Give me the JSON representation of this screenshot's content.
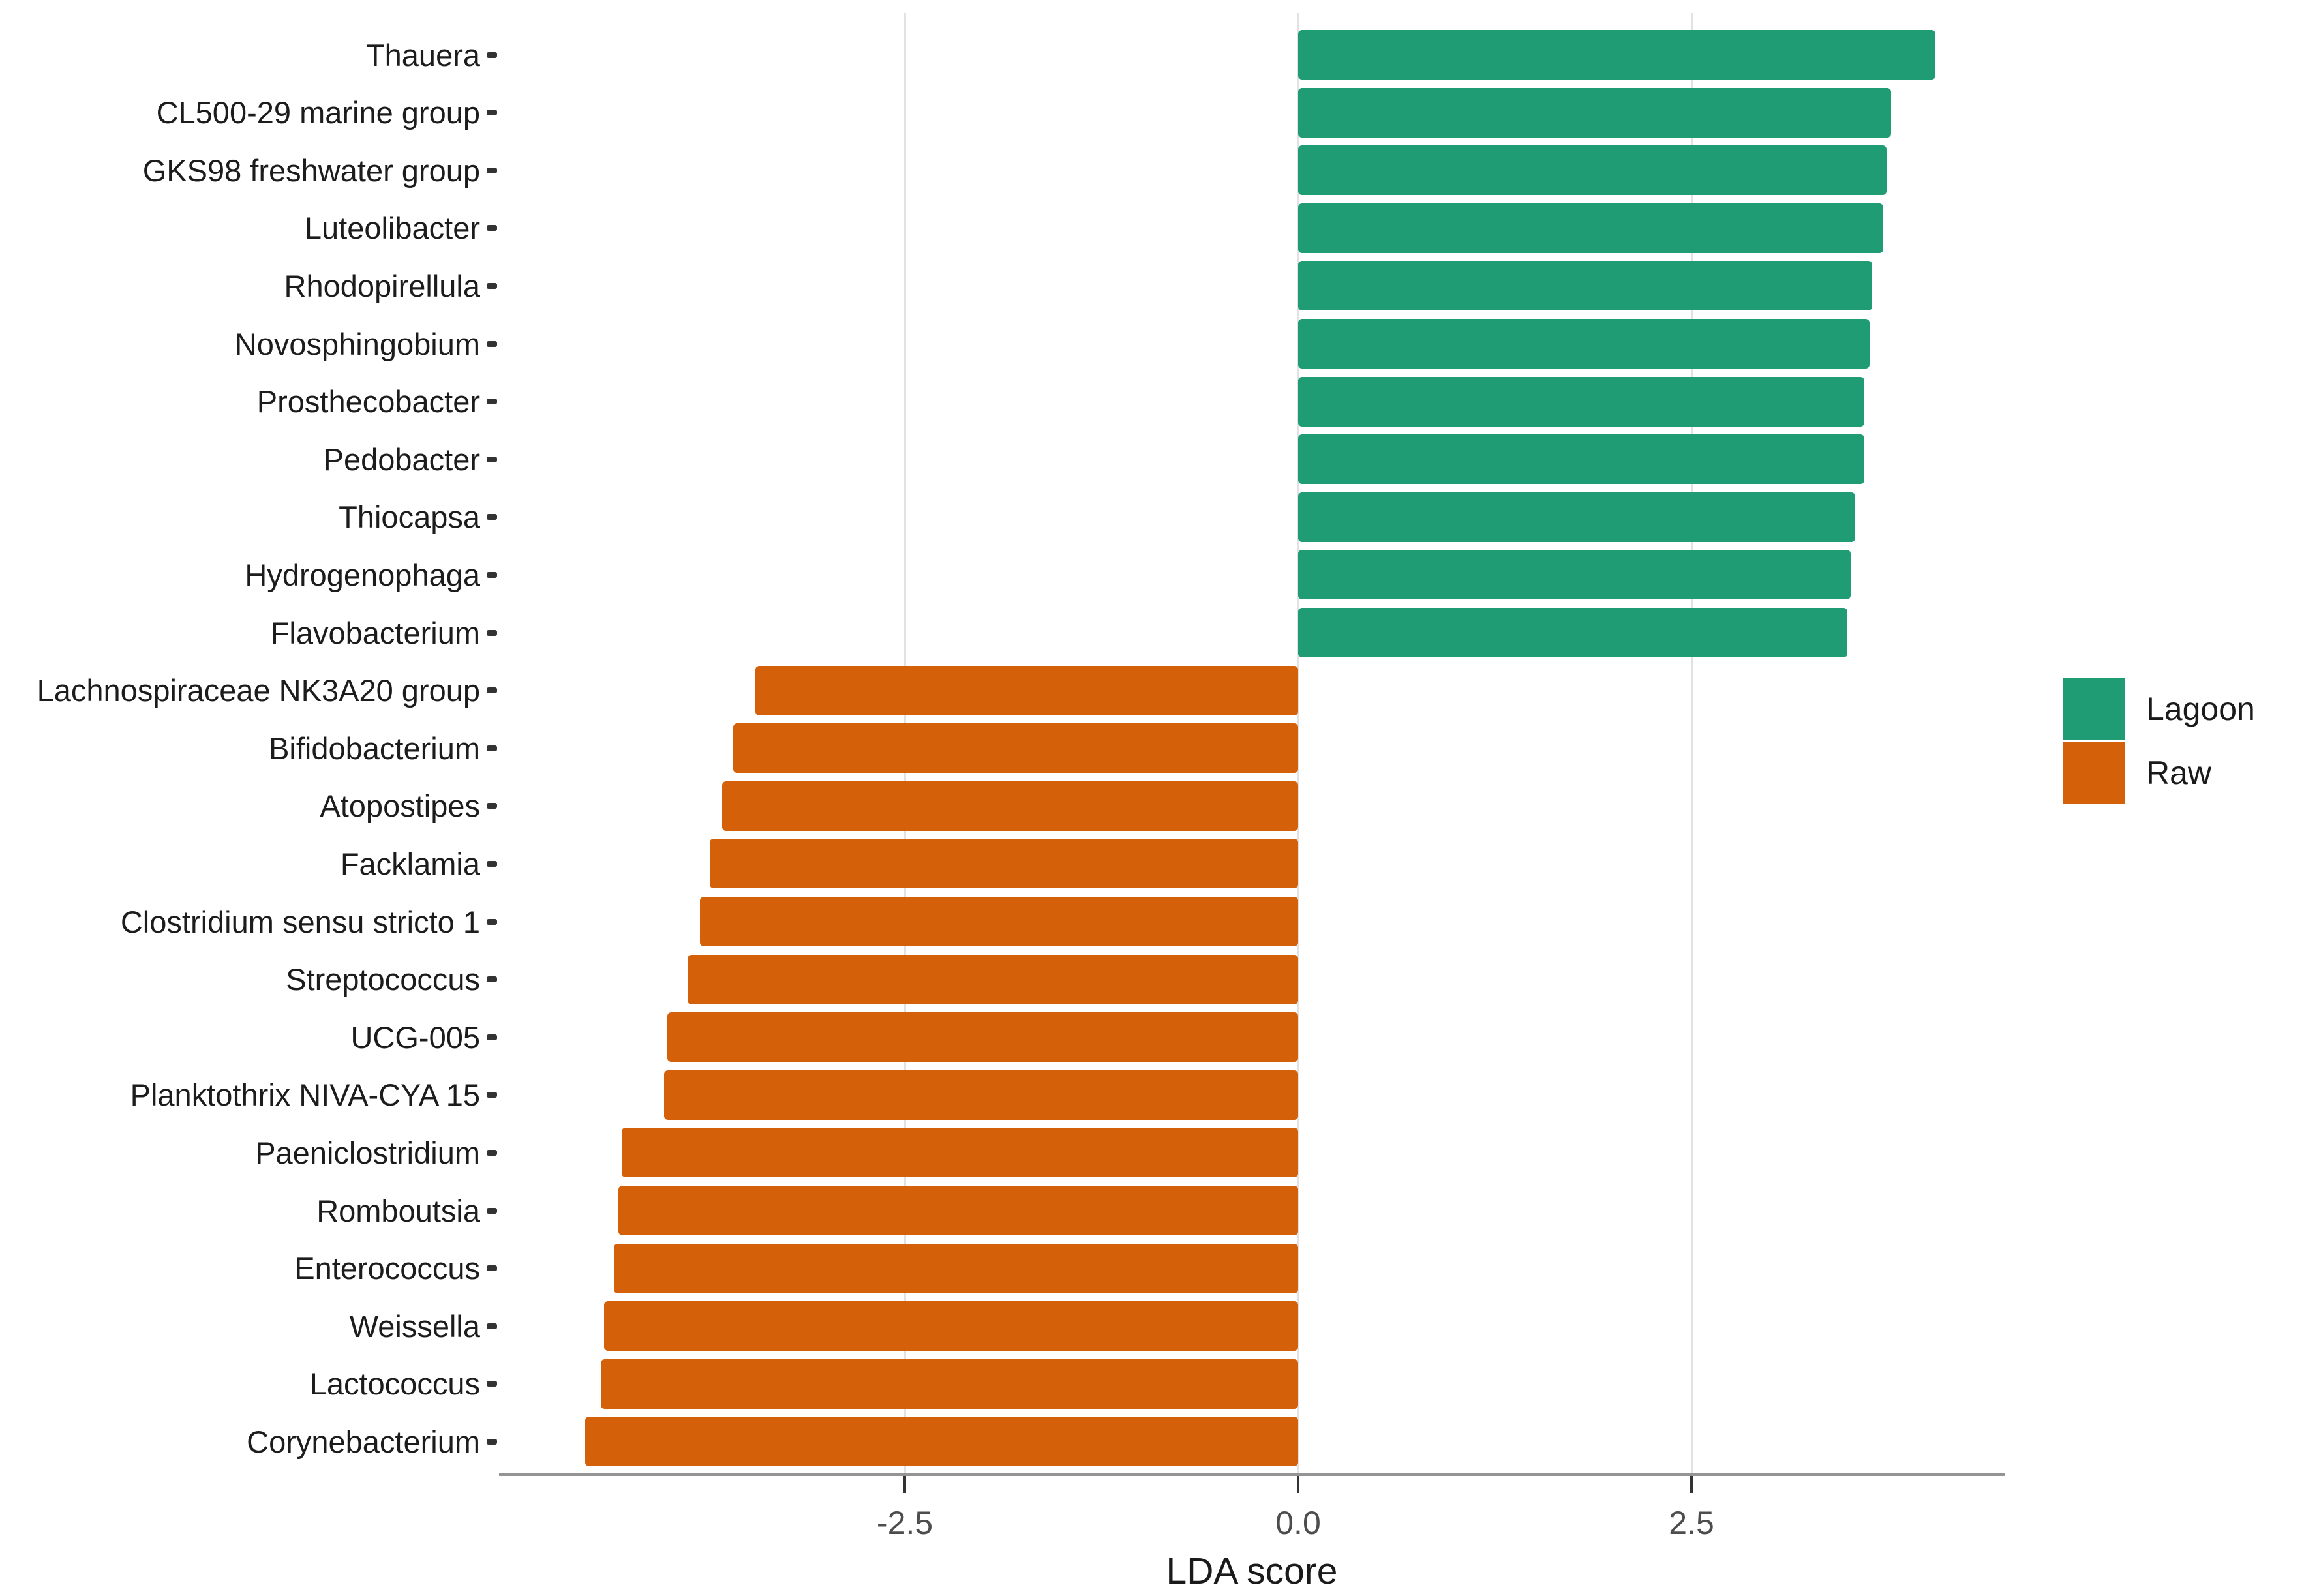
{
  "chart_data": {
    "type": "bar",
    "orientation": "horizontal",
    "title": "",
    "xlabel": "LDA score",
    "ylabel": "",
    "grid": "major-x-only",
    "x_axis": {
      "ticks": [
        -2.5,
        0.0,
        2.5
      ],
      "tick_labels": [
        "-2.5",
        "0.0",
        "2.5"
      ],
      "range": [
        -5.1,
        4.5
      ]
    },
    "legend": {
      "position": "right",
      "entries": [
        {
          "label": "Lagoon",
          "color": "#1f9c74"
        },
        {
          "label": "Raw",
          "color": "#d4600a"
        }
      ]
    },
    "colors": {
      "Lagoon": "#1f9c74",
      "Raw": "#d4600a"
    },
    "items": [
      {
        "name": "Thauera",
        "group": "Lagoon",
        "value": 4.05
      },
      {
        "name": "CL500-29 marine group",
        "group": "Lagoon",
        "value": 3.77
      },
      {
        "name": "GKS98 freshwater group",
        "group": "Lagoon",
        "value": 3.74
      },
      {
        "name": "Luteolibacter",
        "group": "Lagoon",
        "value": 3.72
      },
      {
        "name": "Rhodopirellula",
        "group": "Lagoon",
        "value": 3.65
      },
      {
        "name": "Novosphingobium",
        "group": "Lagoon",
        "value": 3.63
      },
      {
        "name": "Prosthecobacter",
        "group": "Lagoon",
        "value": 3.6
      },
      {
        "name": "Pedobacter",
        "group": "Lagoon",
        "value": 3.6
      },
      {
        "name": "Thiocapsa",
        "group": "Lagoon",
        "value": 3.54
      },
      {
        "name": "Hydrogenophaga",
        "group": "Lagoon",
        "value": 3.51
      },
      {
        "name": "Flavobacterium",
        "group": "Lagoon",
        "value": 3.49
      },
      {
        "name": "Lachnospiraceae NK3A20 group",
        "group": "Raw",
        "value": -3.45
      },
      {
        "name": "Bifidobacterium",
        "group": "Raw",
        "value": -3.59
      },
      {
        "name": "Atopostipes",
        "group": "Raw",
        "value": -3.66
      },
      {
        "name": "Facklamia",
        "group": "Raw",
        "value": -3.74
      },
      {
        "name": "Clostridium sensu stricto 1",
        "group": "Raw",
        "value": -3.8
      },
      {
        "name": "Streptococcus",
        "group": "Raw",
        "value": -3.88
      },
      {
        "name": "UCG-005",
        "group": "Raw",
        "value": -4.01
      },
      {
        "name": "Planktothrix NIVA-CYA 15",
        "group": "Raw",
        "value": -4.03
      },
      {
        "name": "Paeniclostridium",
        "group": "Raw",
        "value": -4.3
      },
      {
        "name": "Romboutsia",
        "group": "Raw",
        "value": -4.32
      },
      {
        "name": "Enterococcus",
        "group": "Raw",
        "value": -4.35
      },
      {
        "name": "Weissella",
        "group": "Raw",
        "value": -4.41
      },
      {
        "name": "Lactococcus",
        "group": "Raw",
        "value": -4.43
      },
      {
        "name": "Corynebacterium",
        "group": "Raw",
        "value": -4.53
      }
    ]
  }
}
